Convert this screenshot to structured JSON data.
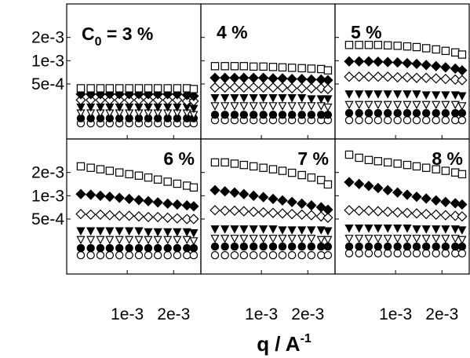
{
  "chart_data": {
    "type": "scatter",
    "layout": "2x3 small multiples",
    "xlabel": {
      "main": "q  /  A",
      "superscript": "-1"
    },
    "ylabel": "",
    "y_scale": "log",
    "x_scale": "log",
    "ylim": [
      0.00012,
      0.0045
    ],
    "xlim": [
      0.00045,
      0.0028
    ],
    "y_ticks": [
      {
        "value": 0.0005,
        "label": "5e-4"
      },
      {
        "value": 0.001,
        "label": "1e-3"
      },
      {
        "value": 0.002,
        "label": "2e-3"
      }
    ],
    "x_ticks": [
      {
        "value": 0.001,
        "label": "1e-3"
      },
      {
        "value": 0.002,
        "label": "2e-3"
      }
    ],
    "x": [
      0.0005,
      0.00058,
      0.00067,
      0.00077,
      0.00089,
      0.00103,
      0.00119,
      0.00137,
      0.00158,
      0.00183,
      0.00211,
      0.00244,
      0.0027
    ],
    "series": [
      {
        "marker": "open-square"
      },
      {
        "marker": "filled-diamond"
      },
      {
        "marker": "open-diamond"
      },
      {
        "marker": "filled-triangle-down"
      },
      {
        "marker": "open-triangle-down"
      },
      {
        "marker": "filled-circle"
      },
      {
        "marker": "open-circle"
      }
    ],
    "panels": [
      {
        "label": "C",
        "label_sub": "0",
        "label_rest": " = 3 %",
        "values": [
          [
            0.00044,
            0.00044,
            0.00044,
            0.00044,
            0.00044,
            0.00044,
            0.00044,
            0.00044,
            0.00044,
            0.00044,
            0.00044,
            0.00044,
            0.00043
          ],
          [
            0.00037,
            0.00037,
            0.00037,
            0.00037,
            0.00037,
            0.00037,
            0.00037,
            0.00037,
            0.00037,
            0.00037,
            0.00037,
            0.00036,
            0.00035
          ],
          [
            0.00031,
            0.00031,
            0.00031,
            0.00031,
            0.00031,
            0.00031,
            0.00031,
            0.00031,
            0.00031,
            0.00031,
            0.00031,
            0.0003,
            0.0003
          ],
          [
            0.00025,
            0.00025,
            0.00025,
            0.00025,
            0.00025,
            0.00025,
            0.00025,
            0.00025,
            0.00025,
            0.00025,
            0.00025,
            0.00025,
            0.00024
          ],
          [
            0.00021,
            0.00021,
            0.00021,
            0.00021,
            0.00021,
            0.00021,
            0.00021,
            0.00021,
            0.00021,
            0.00021,
            0.00021,
            0.00021,
            0.0002
          ],
          [
            0.00018,
            0.00018,
            0.00018,
            0.00018,
            0.00018,
            0.00018,
            0.00018,
            0.00018,
            0.00018,
            0.00018,
            0.00018,
            0.00018,
            0.00018
          ],
          [
            0.000155,
            0.000155,
            0.000155,
            0.000155,
            0.000155,
            0.000155,
            0.000155,
            0.000155,
            0.000155,
            0.000155,
            0.000155,
            0.000155,
            0.000155
          ]
        ]
      },
      {
        "label": "4 %",
        "values": [
          [
            0.00085,
            0.00085,
            0.00085,
            0.00085,
            0.00084,
            0.00084,
            0.00083,
            0.00082,
            0.00081,
            0.0008,
            0.00079,
            0.00078,
            0.00075
          ],
          [
            0.0006,
            0.0006,
            0.0006,
            0.0006,
            0.0006,
            0.0006,
            0.00059,
            0.00059,
            0.00058,
            0.00058,
            0.00057,
            0.00057,
            0.00056
          ],
          [
            0.00045,
            0.00045,
            0.00045,
            0.00045,
            0.00045,
            0.00045,
            0.00045,
            0.00045,
            0.00044,
            0.00044,
            0.00044,
            0.00044,
            0.00043
          ],
          [
            0.00033,
            0.00033,
            0.00033,
            0.00033,
            0.00033,
            0.00033,
            0.00033,
            0.00033,
            0.00033,
            0.00033,
            0.00032,
            0.00032,
            0.00032
          ],
          [
            0.00026,
            0.00026,
            0.00026,
            0.00026,
            0.00026,
            0.00026,
            0.00026,
            0.00026,
            0.00026,
            0.00026,
            0.00026,
            0.00026,
            0.00025
          ],
          [
            0.0002,
            0.0002,
            0.0002,
            0.0002,
            0.0002,
            0.0002,
            0.0002,
            0.0002,
            0.0002,
            0.0002,
            0.0002,
            0.0002,
            0.0002
          ],
          [
            0.00017,
            0.00017,
            0.00017,
            0.00017,
            0.00017,
            0.00017,
            0.00017,
            0.00017,
            0.00017,
            0.00017,
            0.00017,
            0.00017,
            0.00017
          ]
        ]
      },
      {
        "label": "5 %",
        "values": [
          [
            0.0016,
            0.0016,
            0.0016,
            0.0016,
            0.00158,
            0.00156,
            0.00153,
            0.0015,
            0.00145,
            0.0014,
            0.00134,
            0.00128,
            0.0012
          ],
          [
            0.00098,
            0.00098,
            0.00098,
            0.00097,
            0.00096,
            0.00095,
            0.00093,
            0.00091,
            0.00088,
            0.00085,
            0.00082,
            0.00079,
            0.00075
          ],
          [
            0.00062,
            0.00062,
            0.00062,
            0.00062,
            0.00062,
            0.00061,
            0.00061,
            0.0006,
            0.0006,
            0.00059,
            0.00058,
            0.00057,
            0.00056
          ],
          [
            0.00037,
            0.00037,
            0.00037,
            0.00037,
            0.00037,
            0.00037,
            0.00037,
            0.00037,
            0.00036,
            0.00036,
            0.00036,
            0.00036,
            0.00035
          ],
          [
            0.00027,
            0.00027,
            0.00027,
            0.00027,
            0.00027,
            0.00027,
            0.00027,
            0.00027,
            0.00027,
            0.00027,
            0.00027,
            0.00027,
            0.00026
          ],
          [
            0.00021,
            0.00021,
            0.00021,
            0.00021,
            0.00021,
            0.00021,
            0.00021,
            0.00021,
            0.00021,
            0.00021,
            0.00021,
            0.00021,
            0.00021
          ],
          [
            0.00017,
            0.00017,
            0.00017,
            0.00017,
            0.00017,
            0.00017,
            0.00017,
            0.00017,
            0.00017,
            0.00017,
            0.00017,
            0.00017,
            0.00017
          ]
        ]
      },
      {
        "label": "6 %",
        "values": [
          [
            0.0024,
            0.0023,
            0.0022,
            0.0021,
            0.002,
            0.0019,
            0.00182,
            0.00172,
            0.00162,
            0.00152,
            0.00143,
            0.00135,
            0.00128
          ],
          [
            0.00105,
            0.00103,
            0.001,
            0.00097,
            0.00094,
            0.00091,
            0.00088,
            0.00085,
            0.00082,
            0.00079,
            0.00077,
            0.00075,
            0.00073
          ],
          [
            0.00058,
            0.00057,
            0.00057,
            0.00056,
            0.00055,
            0.00055,
            0.00054,
            0.00053,
            0.00053,
            0.00052,
            0.00051,
            0.0005,
            0.0005
          ],
          [
            0.00035,
            0.00035,
            0.00035,
            0.00035,
            0.00035,
            0.00035,
            0.00035,
            0.00034,
            0.00034,
            0.00034,
            0.00034,
            0.00034,
            0.00033
          ],
          [
            0.00027,
            0.00027,
            0.00027,
            0.00027,
            0.00027,
            0.00027,
            0.00027,
            0.00027,
            0.00027,
            0.00027,
            0.00027,
            0.00027,
            0.00026
          ],
          [
            0.00021,
            0.00021,
            0.00021,
            0.00021,
            0.00021,
            0.00021,
            0.00021,
            0.00021,
            0.00021,
            0.00021,
            0.00021,
            0.00021,
            0.00021
          ],
          [
            0.00017,
            0.00017,
            0.00017,
            0.00017,
            0.00017,
            0.00017,
            0.00017,
            0.00017,
            0.00017,
            0.00017,
            0.00017,
            0.00017,
            0.00017
          ]
        ]
      },
      {
        "label": "7 %",
        "values": [
          [
            0.0027,
            0.0027,
            0.0026,
            0.0025,
            0.0024,
            0.0023,
            0.0022,
            0.0021,
            0.00198,
            0.00185,
            0.00172,
            0.0016,
            0.0014
          ],
          [
            0.00118,
            0.00114,
            0.0011,
            0.00105,
            0.001,
            0.00096,
            0.00091,
            0.00087,
            0.00083,
            0.00079,
            0.00075,
            0.00071,
            0.00066
          ],
          [
            0.00065,
            0.00064,
            0.00064,
            0.00063,
            0.00062,
            0.00061,
            0.0006,
            0.00059,
            0.00058,
            0.00057,
            0.00056,
            0.00054,
            0.00052
          ],
          [
            0.00037,
            0.00037,
            0.00037,
            0.00037,
            0.00037,
            0.00037,
            0.00037,
            0.00036,
            0.00036,
            0.00036,
            0.00036,
            0.00036,
            0.00035
          ],
          [
            0.00028,
            0.00028,
            0.00028,
            0.00028,
            0.00028,
            0.00028,
            0.00028,
            0.00028,
            0.00028,
            0.00028,
            0.00028,
            0.00027,
            0.00027
          ],
          [
            0.00022,
            0.00022,
            0.00022,
            0.00022,
            0.00022,
            0.00022,
            0.00022,
            0.00022,
            0.00022,
            0.00022,
            0.00022,
            0.00022,
            0.00022
          ],
          [
            0.00017,
            0.00017,
            0.00017,
            0.00017,
            0.00017,
            0.00017,
            0.00017,
            0.00017,
            0.00017,
            0.00017,
            0.00017,
            0.00017,
            0.00017
          ]
        ]
      },
      {
        "label": "8 %",
        "values": [
          [
            0.0034,
            0.0031,
            0.0029,
            0.0028,
            0.0027,
            0.0026,
            0.0025,
            0.0024,
            0.0023,
            0.0022,
            0.0021,
            0.002,
            0.0019
          ],
          [
            0.0015,
            0.00142,
            0.00134,
            0.00126,
            0.00118,
            0.0011,
            0.00103,
            0.00097,
            0.00092,
            0.00087,
            0.00083,
            0.0008,
            0.00077
          ],
          [
            0.00065,
            0.00064,
            0.00064,
            0.00063,
            0.00062,
            0.00061,
            0.0006,
            0.00059,
            0.00058,
            0.00057,
            0.00056,
            0.00055,
            0.00054
          ],
          [
            0.00038,
            0.00038,
            0.00038,
            0.00038,
            0.00038,
            0.00038,
            0.00038,
            0.00037,
            0.00037,
            0.00037,
            0.00037,
            0.00037,
            0.00036
          ],
          [
            0.00028,
            0.00028,
            0.00028,
            0.00028,
            0.00028,
            0.00028,
            0.00028,
            0.00028,
            0.00028,
            0.00028,
            0.00028,
            0.00028,
            0.00027
          ],
          [
            0.00022,
            0.00022,
            0.00022,
            0.00022,
            0.00022,
            0.00022,
            0.00022,
            0.00022,
            0.00022,
            0.00022,
            0.00022,
            0.00022,
            0.00022
          ],
          [
            0.00018,
            0.00018,
            0.00018,
            0.00018,
            0.00018,
            0.00018,
            0.00018,
            0.00018,
            0.00018,
            0.00018,
            0.00018,
            0.00018,
            0.00018
          ]
        ]
      }
    ]
  }
}
